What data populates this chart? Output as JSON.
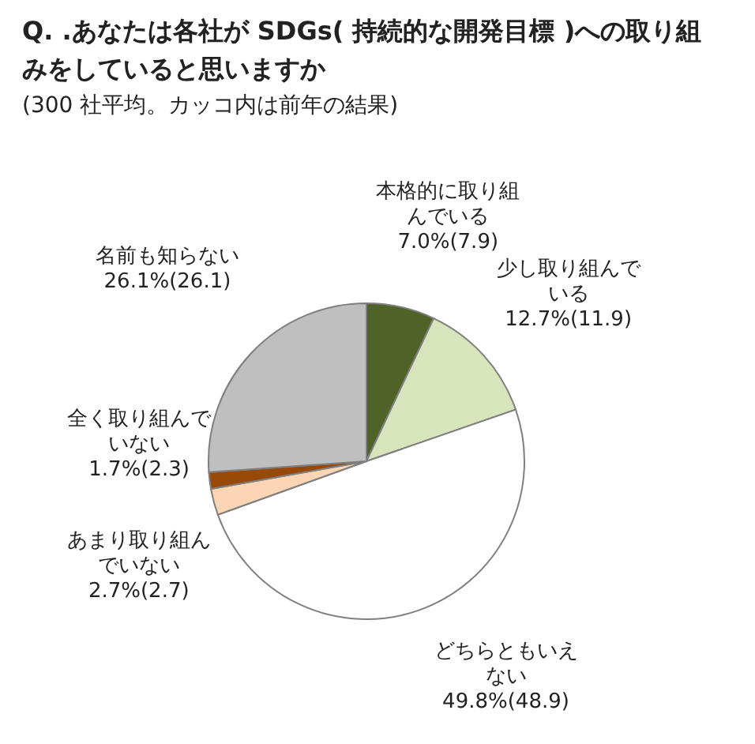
{
  "chart_data": {
    "type": "pie",
    "title": "Q. .あなたは各社が SDGs( 持続的な開発目標 )への取り組みをしていると思いますか",
    "subtitle": "(300 社平均。カッコ内は前年の結果)",
    "categories": [
      "本格的に取り組んでいる",
      "少し取り組んでいる",
      "どちらともいえない",
      "あまり取り組んでいない",
      "全く取り組んでいない",
      "名前も知らない"
    ],
    "values": [
      7.0,
      12.7,
      49.8,
      2.7,
      1.7,
      26.1
    ],
    "value_labels": [
      "7.0%(7.9)",
      "12.7%(11.9)",
      "49.8%(48.9)",
      "2.7%(2.7)",
      "1.7%(2.3)",
      "26.1%(26.1)"
    ],
    "colors": [
      "#4f6228",
      "#d7e4bc",
      "#ffffff",
      "#fcd5b4",
      "#984807",
      "#bfbfbf"
    ]
  }
}
